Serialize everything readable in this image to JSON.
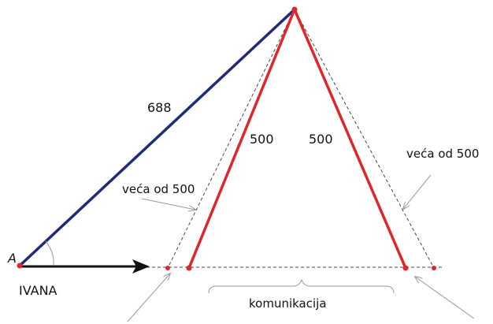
{
  "labels": {
    "point_a": "A",
    "person": "IVANA",
    "side_blue": "688",
    "side_left": "500",
    "side_right": "500",
    "note_left": "veća od 500",
    "note_right": "veća od 500",
    "road": "komunikacija"
  }
}
